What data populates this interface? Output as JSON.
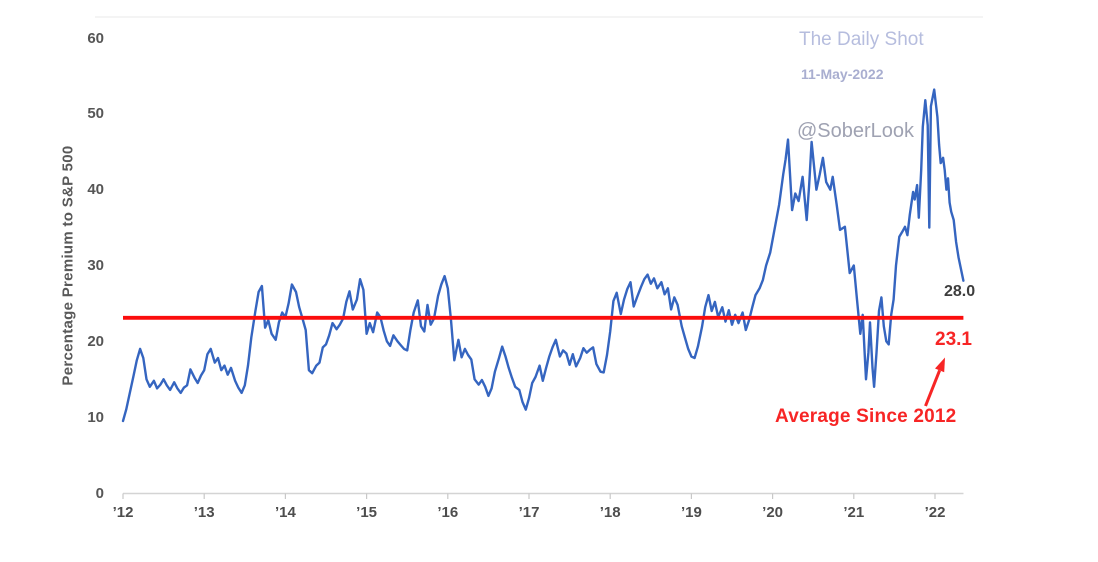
{
  "watermark": {
    "source": "The Daily Shot",
    "date": "11-May-2022",
    "handle": "@SoberLook"
  },
  "annotations": {
    "last_value": "28.0",
    "average_value": "23.1",
    "average_label": "Average Since 2012"
  },
  "colors": {
    "series_blue": "#3565c0",
    "line_red": "#fb0d0d",
    "annotation_red": "#f72525",
    "dark_text": "#3d3d3d",
    "watermark_blue": "#b6bdde",
    "watermark_date": "#a9aed0",
    "watermark_gray": "#9fa2b2",
    "axis_line": "#d4d4d4"
  },
  "chart_data": {
    "type": "line",
    "title": "",
    "xlabel": "",
    "ylabel": "Percentage Premium to S&P 500",
    "xlim": [
      2012,
      2022.35
    ],
    "ylim": [
      0,
      60
    ],
    "grid": false,
    "legend": false,
    "y_ticks": [
      {
        "value": 60,
        "label": "60"
      },
      {
        "value": 50,
        "label": "50"
      },
      {
        "value": 40,
        "label": "40"
      },
      {
        "value": 30,
        "label": "30"
      },
      {
        "value": 20,
        "label": "20"
      },
      {
        "value": 10,
        "label": "10"
      },
      {
        "value": 0,
        "label": "0"
      }
    ],
    "x_ticks": [
      {
        "year": 2012,
        "label": "’12"
      },
      {
        "year": 2013,
        "label": "’13"
      },
      {
        "year": 2014,
        "label": "’14"
      },
      {
        "year": 2015,
        "label": "’15"
      },
      {
        "year": 2016,
        "label": "’16"
      },
      {
        "year": 2017,
        "label": "’17"
      },
      {
        "year": 2018,
        "label": "’18"
      },
      {
        "year": 2019,
        "label": "’19"
      },
      {
        "year": 2020,
        "label": "’20"
      },
      {
        "year": 2021,
        "label": "’21"
      },
      {
        "year": 2022,
        "label": "’22"
      }
    ],
    "average_line": {
      "value": 23.1,
      "label": "23.1",
      "annotation": "Average Since 2012"
    },
    "last_point": {
      "x": 2022.35,
      "y": 28.0,
      "label": "28.0"
    },
    "series": [
      {
        "name": "Percentage Premium to S&P 500",
        "points": [
          [
            2012.0,
            9.5
          ],
          [
            2012.04,
            11.0
          ],
          [
            2012.08,
            13.0
          ],
          [
            2012.13,
            15.5
          ],
          [
            2012.17,
            17.5
          ],
          [
            2012.21,
            19.0
          ],
          [
            2012.25,
            17.8
          ],
          [
            2012.29,
            15.0
          ],
          [
            2012.33,
            14.0
          ],
          [
            2012.38,
            14.8
          ],
          [
            2012.42,
            13.8
          ],
          [
            2012.46,
            14.3
          ],
          [
            2012.5,
            15.0
          ],
          [
            2012.54,
            14.2
          ],
          [
            2012.58,
            13.6
          ],
          [
            2012.63,
            14.6
          ],
          [
            2012.67,
            13.8
          ],
          [
            2012.71,
            13.2
          ],
          [
            2012.75,
            13.9
          ],
          [
            2012.79,
            14.2
          ],
          [
            2012.83,
            16.3
          ],
          [
            2012.88,
            15.2
          ],
          [
            2012.92,
            14.5
          ],
          [
            2012.96,
            15.5
          ],
          [
            2013.0,
            16.2
          ],
          [
            2013.04,
            18.3
          ],
          [
            2013.08,
            19.0
          ],
          [
            2013.13,
            17.2
          ],
          [
            2013.17,
            17.8
          ],
          [
            2013.21,
            16.2
          ],
          [
            2013.25,
            16.8
          ],
          [
            2013.29,
            15.6
          ],
          [
            2013.33,
            16.5
          ],
          [
            2013.38,
            14.8
          ],
          [
            2013.42,
            13.9
          ],
          [
            2013.46,
            13.2
          ],
          [
            2013.5,
            14.2
          ],
          [
            2013.54,
            16.8
          ],
          [
            2013.58,
            20.5
          ],
          [
            2013.63,
            24.0
          ],
          [
            2013.67,
            26.5
          ],
          [
            2013.71,
            27.3
          ],
          [
            2013.75,
            21.8
          ],
          [
            2013.79,
            22.8
          ],
          [
            2013.83,
            21.0
          ],
          [
            2013.88,
            20.2
          ],
          [
            2013.92,
            22.5
          ],
          [
            2013.96,
            23.8
          ],
          [
            2014.0,
            23.2
          ],
          [
            2014.04,
            25.0
          ],
          [
            2014.08,
            27.5
          ],
          [
            2014.13,
            26.5
          ],
          [
            2014.17,
            24.5
          ],
          [
            2014.21,
            23.0
          ],
          [
            2014.25,
            21.5
          ],
          [
            2014.29,
            16.2
          ],
          [
            2014.33,
            15.8
          ],
          [
            2014.38,
            16.8
          ],
          [
            2014.42,
            17.2
          ],
          [
            2014.46,
            19.2
          ],
          [
            2014.5,
            19.6
          ],
          [
            2014.54,
            20.8
          ],
          [
            2014.58,
            22.4
          ],
          [
            2014.63,
            21.6
          ],
          [
            2014.67,
            22.2
          ],
          [
            2014.71,
            23.0
          ],
          [
            2014.75,
            25.2
          ],
          [
            2014.79,
            26.6
          ],
          [
            2014.83,
            24.2
          ],
          [
            2014.88,
            25.5
          ],
          [
            2014.92,
            28.2
          ],
          [
            2014.96,
            26.8
          ],
          [
            2015.0,
            21.0
          ],
          [
            2015.04,
            22.4
          ],
          [
            2015.08,
            21.2
          ],
          [
            2015.13,
            23.8
          ],
          [
            2015.17,
            23.2
          ],
          [
            2015.21,
            21.4
          ],
          [
            2015.25,
            20.0
          ],
          [
            2015.29,
            19.4
          ],
          [
            2015.33,
            20.8
          ],
          [
            2015.38,
            20.0
          ],
          [
            2015.42,
            19.5
          ],
          [
            2015.46,
            19.0
          ],
          [
            2015.5,
            18.8
          ],
          [
            2015.54,
            21.5
          ],
          [
            2015.58,
            23.8
          ],
          [
            2015.63,
            25.4
          ],
          [
            2015.67,
            22.0
          ],
          [
            2015.71,
            21.3
          ],
          [
            2015.75,
            24.8
          ],
          [
            2015.79,
            22.2
          ],
          [
            2015.83,
            23.0
          ],
          [
            2015.88,
            26.0
          ],
          [
            2015.92,
            27.5
          ],
          [
            2015.96,
            28.6
          ],
          [
            2016.0,
            27.0
          ],
          [
            2016.04,
            22.8
          ],
          [
            2016.08,
            17.5
          ],
          [
            2016.13,
            20.2
          ],
          [
            2016.17,
            17.9
          ],
          [
            2016.21,
            19.0
          ],
          [
            2016.25,
            18.2
          ],
          [
            2016.29,
            17.6
          ],
          [
            2016.33,
            15.0
          ],
          [
            2016.38,
            14.3
          ],
          [
            2016.42,
            14.9
          ],
          [
            2016.46,
            14.0
          ],
          [
            2016.5,
            12.8
          ],
          [
            2016.54,
            13.8
          ],
          [
            2016.58,
            16.0
          ],
          [
            2016.63,
            17.8
          ],
          [
            2016.67,
            19.3
          ],
          [
            2016.71,
            18.0
          ],
          [
            2016.75,
            16.5
          ],
          [
            2016.79,
            15.2
          ],
          [
            2016.83,
            14.0
          ],
          [
            2016.88,
            13.6
          ],
          [
            2016.92,
            12.0
          ],
          [
            2016.96,
            11.0
          ],
          [
            2017.0,
            12.5
          ],
          [
            2017.04,
            14.5
          ],
          [
            2017.08,
            15.3
          ],
          [
            2017.13,
            16.8
          ],
          [
            2017.17,
            14.8
          ],
          [
            2017.21,
            16.5
          ],
          [
            2017.25,
            18.0
          ],
          [
            2017.29,
            19.2
          ],
          [
            2017.33,
            20.2
          ],
          [
            2017.38,
            18.0
          ],
          [
            2017.42,
            18.8
          ],
          [
            2017.46,
            18.4
          ],
          [
            2017.5,
            16.9
          ],
          [
            2017.54,
            18.3
          ],
          [
            2017.58,
            16.7
          ],
          [
            2017.63,
            17.8
          ],
          [
            2017.67,
            19.1
          ],
          [
            2017.71,
            18.5
          ],
          [
            2017.75,
            18.9
          ],
          [
            2017.79,
            19.2
          ],
          [
            2017.83,
            17.0
          ],
          [
            2017.88,
            16.0
          ],
          [
            2017.92,
            15.9
          ],
          [
            2017.96,
            18.2
          ],
          [
            2018.0,
            21.3
          ],
          [
            2018.04,
            25.3
          ],
          [
            2018.08,
            26.4
          ],
          [
            2018.13,
            23.6
          ],
          [
            2018.17,
            25.5
          ],
          [
            2018.21,
            26.9
          ],
          [
            2018.25,
            27.8
          ],
          [
            2018.29,
            24.6
          ],
          [
            2018.33,
            25.8
          ],
          [
            2018.38,
            27.2
          ],
          [
            2018.42,
            28.2
          ],
          [
            2018.46,
            28.8
          ],
          [
            2018.5,
            27.6
          ],
          [
            2018.54,
            28.3
          ],
          [
            2018.58,
            27.0
          ],
          [
            2018.63,
            27.8
          ],
          [
            2018.67,
            26.2
          ],
          [
            2018.71,
            27.0
          ],
          [
            2018.75,
            24.2
          ],
          [
            2018.79,
            25.8
          ],
          [
            2018.83,
            24.8
          ],
          [
            2018.88,
            22.0
          ],
          [
            2018.92,
            20.5
          ],
          [
            2018.96,
            19.0
          ],
          [
            2019.0,
            18.0
          ],
          [
            2019.04,
            17.8
          ],
          [
            2019.08,
            19.3
          ],
          [
            2019.13,
            21.9
          ],
          [
            2019.17,
            24.5
          ],
          [
            2019.21,
            26.1
          ],
          [
            2019.25,
            24.0
          ],
          [
            2019.29,
            25.2
          ],
          [
            2019.33,
            23.2
          ],
          [
            2019.38,
            24.5
          ],
          [
            2019.42,
            22.6
          ],
          [
            2019.46,
            24.1
          ],
          [
            2019.5,
            22.2
          ],
          [
            2019.54,
            23.5
          ],
          [
            2019.58,
            22.4
          ],
          [
            2019.63,
            23.8
          ],
          [
            2019.67,
            21.5
          ],
          [
            2019.71,
            22.8
          ],
          [
            2019.75,
            24.5
          ],
          [
            2019.79,
            26.1
          ],
          [
            2019.84,
            27.0
          ],
          [
            2019.88,
            28.1
          ],
          [
            2019.92,
            30.0
          ],
          [
            2019.97,
            31.7
          ],
          [
            2020.03,
            35.1
          ],
          [
            2020.08,
            38.0
          ],
          [
            2020.13,
            42.0
          ],
          [
            2020.16,
            44.0
          ],
          [
            2020.19,
            46.6
          ],
          [
            2020.24,
            37.3
          ],
          [
            2020.28,
            39.5
          ],
          [
            2020.32,
            38.5
          ],
          [
            2020.37,
            41.7
          ],
          [
            2020.42,
            36.0
          ],
          [
            2020.45,
            40.5
          ],
          [
            2020.48,
            46.3
          ],
          [
            2020.54,
            40.0
          ],
          [
            2020.58,
            42.0
          ],
          [
            2020.62,
            44.2
          ],
          [
            2020.66,
            41.0
          ],
          [
            2020.71,
            40.0
          ],
          [
            2020.74,
            41.7
          ],
          [
            2020.79,
            38.0
          ],
          [
            2020.83,
            34.7
          ],
          [
            2020.89,
            35.1
          ],
          [
            2020.95,
            29.0
          ],
          [
            2021.0,
            30.0
          ],
          [
            2021.04,
            25.5
          ],
          [
            2021.08,
            21.0
          ],
          [
            2021.11,
            23.5
          ],
          [
            2021.15,
            15.0
          ],
          [
            2021.18,
            18.5
          ],
          [
            2021.2,
            22.5
          ],
          [
            2021.23,
            16.5
          ],
          [
            2021.25,
            14.0
          ],
          [
            2021.28,
            18.5
          ],
          [
            2021.31,
            24.0
          ],
          [
            2021.34,
            25.8
          ],
          [
            2021.37,
            22.0
          ],
          [
            2021.4,
            20.0
          ],
          [
            2021.43,
            19.6
          ],
          [
            2021.46,
            23.5
          ],
          [
            2021.49,
            25.5
          ],
          [
            2021.52,
            30.0
          ],
          [
            2021.56,
            33.8
          ],
          [
            2021.6,
            34.5
          ],
          [
            2021.63,
            35.1
          ],
          [
            2021.66,
            34.0
          ],
          [
            2021.69,
            36.7
          ],
          [
            2021.73,
            39.7
          ],
          [
            2021.75,
            38.7
          ],
          [
            2021.78,
            40.6
          ],
          [
            2021.8,
            36.3
          ],
          [
            2021.83,
            42.6
          ],
          [
            2021.85,
            48.3
          ],
          [
            2021.88,
            51.8
          ],
          [
            2021.91,
            48.5
          ],
          [
            2021.93,
            35.0
          ],
          [
            2021.95,
            51.0
          ],
          [
            2021.99,
            53.2
          ],
          [
            2022.03,
            49.6
          ],
          [
            2022.05,
            45.9
          ],
          [
            2022.07,
            43.5
          ],
          [
            2022.1,
            44.2
          ],
          [
            2022.12,
            42.6
          ],
          [
            2022.14,
            40.0
          ],
          [
            2022.16,
            41.5
          ],
          [
            2022.18,
            38.3
          ],
          [
            2022.2,
            37.1
          ],
          [
            2022.23,
            36.0
          ],
          [
            2022.26,
            33.1
          ],
          [
            2022.29,
            31.1
          ],
          [
            2022.32,
            29.5
          ],
          [
            2022.35,
            28.0
          ]
        ]
      }
    ]
  }
}
